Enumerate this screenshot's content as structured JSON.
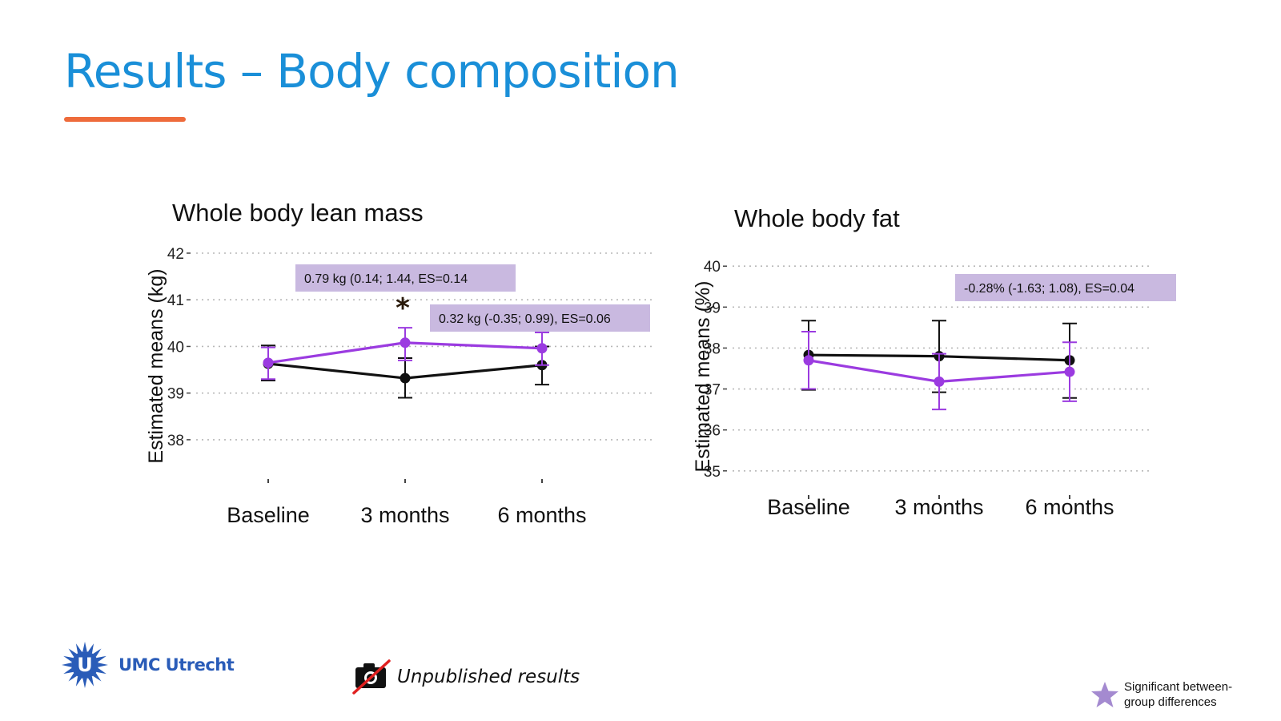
{
  "slide": {
    "title": "Results – Body composition",
    "accent_color": "#1a8fd8",
    "underline_color": "#ee6b3b"
  },
  "footer": {
    "logo_text": "UMC Utrecht",
    "logo_icon": "sun-emblem-icon",
    "unpublished_text": "Unpublished results",
    "unpublished_icon": "crossed-camera-icon",
    "legend_icon": "star-icon",
    "legend_text": "Significant between-group differences"
  },
  "chart_data": [
    {
      "type": "line",
      "title": "Whole body lean mass",
      "ylabel": "Estimated means (kg)",
      "xlabel": "",
      "categories": [
        "Baseline",
        "3 months",
        "6 months"
      ],
      "ylim": [
        37.5,
        42
      ],
      "yticks": [
        38,
        39,
        40,
        41,
        42
      ],
      "grid": true,
      "series": [
        {
          "color": "#111111",
          "values": [
            39.63,
            39.32,
            39.6
          ],
          "err_low": [
            39.27,
            38.9,
            39.18
          ],
          "err_high": [
            40.02,
            39.75,
            40.0
          ]
        },
        {
          "color": "#9b3be0",
          "values": [
            39.65,
            40.08,
            39.96
          ],
          "err_low": [
            39.3,
            39.7,
            39.6
          ],
          "err_high": [
            39.98,
            40.4,
            40.3
          ]
        }
      ],
      "annotations": [
        {
          "text": "0.79 kg (0.14; 1.44, ES=0.14"
        },
        {
          "text": "0.32 kg (-0.35; 0.99), ES=0.06"
        }
      ],
      "significance_marker": {
        "text": "*",
        "category": "3 months"
      }
    },
    {
      "type": "line",
      "title": "Whole body fat",
      "ylabel": "Estimated means (%)",
      "xlabel": "",
      "categories": [
        "Baseline",
        "3 months",
        "6 months"
      ],
      "ylim": [
        34.8,
        40.2
      ],
      "yticks": [
        35,
        36,
        37,
        38,
        39,
        40
      ],
      "grid": true,
      "series": [
        {
          "color": "#111111",
          "values": [
            37.83,
            37.8,
            37.7
          ],
          "err_low": [
            36.98,
            36.92,
            36.78
          ],
          "err_high": [
            38.67,
            38.67,
            38.6
          ]
        },
        {
          "color": "#9b3be0",
          "values": [
            37.7,
            37.18,
            37.42
          ],
          "err_low": [
            37.0,
            36.5,
            36.7
          ],
          "err_high": [
            38.4,
            37.86,
            38.14
          ]
        }
      ],
      "annotations": [
        {
          "text": "-0.28% (-1.63; 1.08), ES=0.04"
        }
      ]
    }
  ]
}
